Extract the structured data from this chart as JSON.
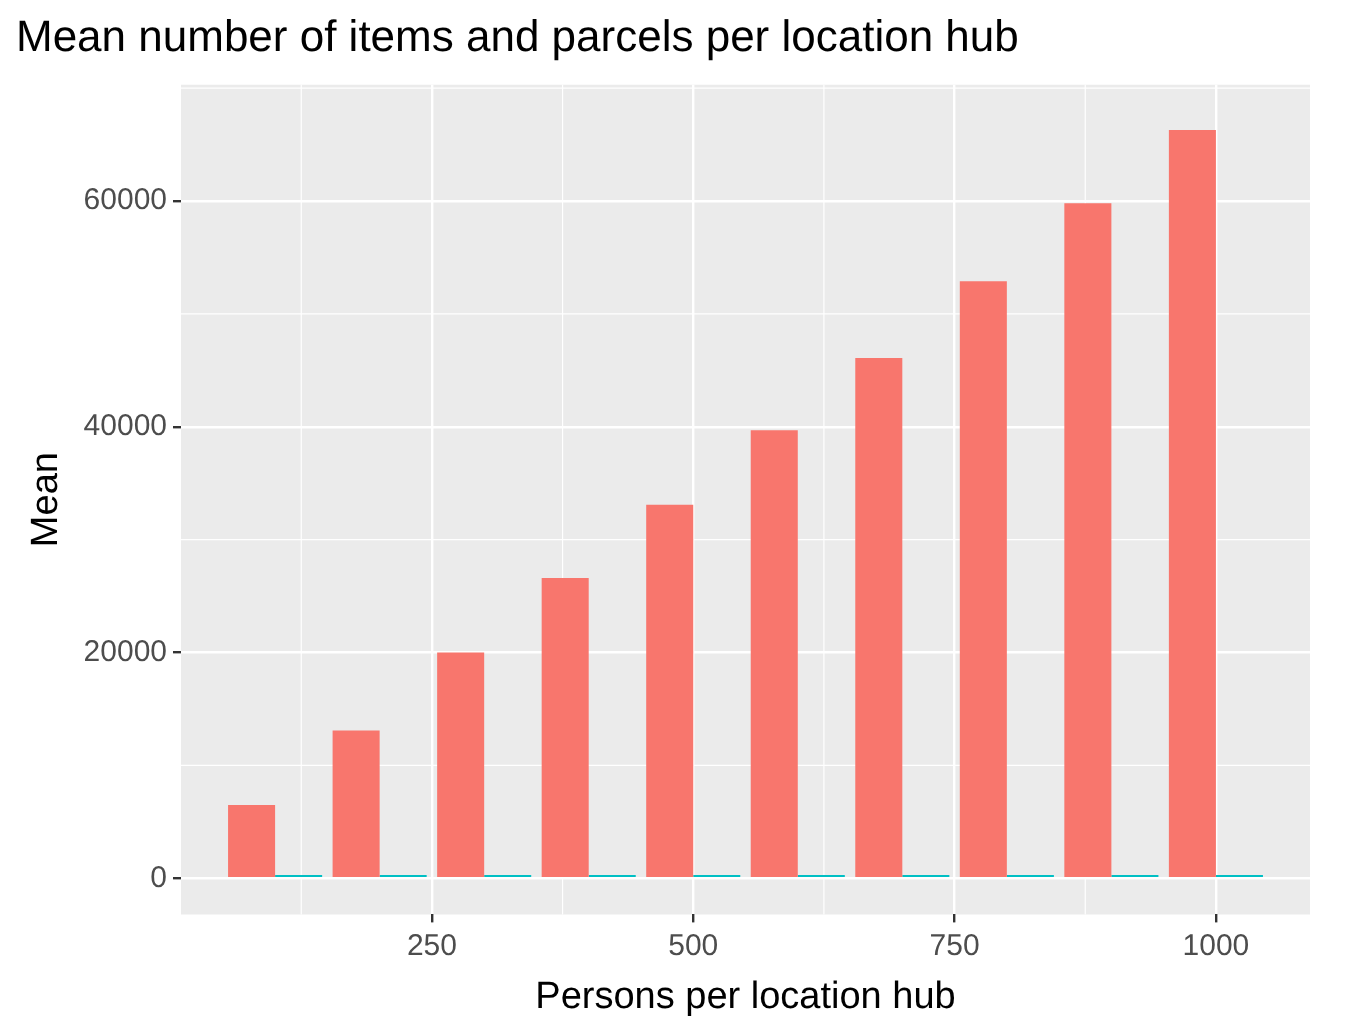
{
  "chart_data": {
    "type": "bar",
    "title": "Mean number of items and parcels per location hub",
    "xlabel": "Persons per location hub",
    "ylabel": "Mean",
    "x": [
      100,
      200,
      300,
      400,
      500,
      600,
      700,
      800,
      900,
      1000
    ],
    "series": [
      {
        "color": "#f8766d",
        "values": [
          6500,
          13100,
          20000,
          26600,
          33100,
          39700,
          46100,
          52900,
          59800,
          66300
        ]
      },
      {
        "color": "#00bfc4",
        "values": [
          300,
          300,
          300,
          300,
          300,
          300,
          300,
          300,
          300,
          300
        ]
      }
    ],
    "xlim": [
      10,
      1090
    ],
    "xticks": [
      250,
      500,
      750,
      1000
    ],
    "ylim": [
      -3200,
      70300
    ],
    "yticks": [
      0,
      20000,
      40000,
      60000
    ],
    "grid": true,
    "legend": false
  }
}
